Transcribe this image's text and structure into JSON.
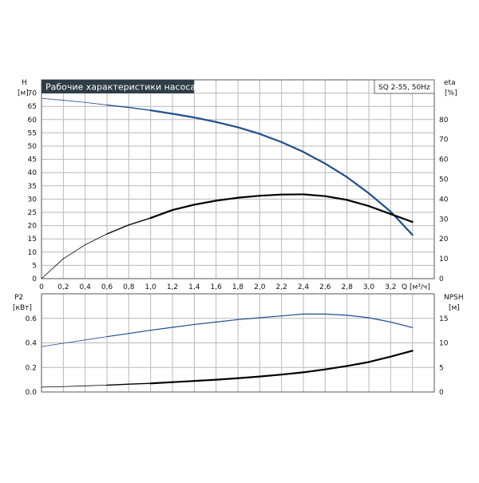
{
  "chart_data": [
    {
      "type": "line",
      "title": "Рабочие характеристики насоса",
      "model": "SQ 2-55, 50Hz",
      "xlabel": "Q [м³/ч]",
      "ylabel": "H",
      "yunit": "[м]",
      "y2label": "eta",
      "y2unit": "[%]",
      "xlim": [
        0,
        3.6
      ],
      "ylim": [
        0,
        75
      ],
      "y2lim": [
        0,
        100
      ],
      "x_ticks": [
        "0",
        "0,2",
        "0,4",
        "0,6",
        "0,8",
        "1,0",
        "1,2",
        "1,4",
        "1,6",
        "1,8",
        "2,0",
        "2,2",
        "2,4",
        "2,6",
        "2,8",
        "3,0",
        "3,2"
      ],
      "y_ticks": [
        "0",
        "5",
        "10",
        "15",
        "20",
        "25",
        "30",
        "35",
        "40",
        "45",
        "50",
        "55",
        "60",
        "65",
        "70"
      ],
      "y2_ticks": [
        "0",
        "10",
        "20",
        "30",
        "40",
        "50",
        "60",
        "70",
        "80"
      ],
      "grid": true,
      "series": [
        {
          "axis": "left",
          "color": "#1f4e8c",
          "x": [
            0,
            0.2,
            0.4,
            0.6,
            0.8,
            1.0,
            1.2,
            1.4,
            1.6,
            1.8,
            2.0,
            2.2,
            2.4,
            2.6,
            2.8,
            3.0,
            3.2,
            3.4
          ],
          "y": [
            68,
            67.3,
            66.5,
            65.5,
            64.6,
            63.5,
            62.2,
            60.8,
            59.1,
            57.1,
            54.6,
            51.5,
            47.8,
            43.4,
            38.3,
            32.2,
            25.3,
            16.5
          ]
        },
        {
          "axis": "right",
          "color": "#000000",
          "x": [
            0,
            0.2,
            0.4,
            0.6,
            0.8,
            1.0,
            1.2,
            1.4,
            1.6,
            1.8,
            2.0,
            2.2,
            2.4,
            2.6,
            2.8,
            3.0,
            3.2,
            3.4
          ],
          "y": [
            0,
            10,
            17,
            22.5,
            27,
            30.5,
            34.5,
            37.2,
            39.2,
            40.7,
            41.7,
            42.3,
            42.4,
            41.5,
            39.6,
            36.5,
            32.5,
            28.5
          ]
        }
      ]
    },
    {
      "type": "line",
      "xlabel": "",
      "ylabel": "P2",
      "yunit": "[кВт]",
      "y2label": "NPSH",
      "y2unit": "[м]",
      "xlim": [
        0,
        3.6
      ],
      "ylim": [
        0,
        0.8
      ],
      "y2lim": [
        0,
        20
      ],
      "y_ticks": [
        "0.0",
        "0.2",
        "0.4",
        "0.6"
      ],
      "y2_ticks": [
        "0",
        "5",
        "10",
        "15"
      ],
      "grid": true,
      "series": [
        {
          "axis": "left",
          "color": "#1f4e8c",
          "x": [
            0,
            0.2,
            0.4,
            0.6,
            0.8,
            1.0,
            1.2,
            1.4,
            1.6,
            1.8,
            2.0,
            2.2,
            2.4,
            2.6,
            2.8,
            3.0,
            3.2,
            3.4
          ],
          "y": [
            0.37,
            0.397,
            0.424,
            0.451,
            0.477,
            0.503,
            0.527,
            0.55,
            0.57,
            0.59,
            0.605,
            0.62,
            0.635,
            0.635,
            0.625,
            0.605,
            0.57,
            0.525
          ]
        },
        {
          "axis": "right",
          "color": "#000000",
          "x": [
            0,
            0.2,
            0.4,
            0.6,
            0.8,
            1.0,
            1.2,
            1.4,
            1.6,
            1.8,
            2.0,
            2.2,
            2.4,
            2.6,
            2.8,
            3.0,
            3.2,
            3.4
          ],
          "y": [
            1.0,
            1.1,
            1.25,
            1.4,
            1.6,
            1.75,
            2.0,
            2.25,
            2.5,
            2.8,
            3.15,
            3.55,
            4.0,
            4.6,
            5.3,
            6.1,
            7.2,
            8.4
          ]
        }
      ]
    }
  ]
}
